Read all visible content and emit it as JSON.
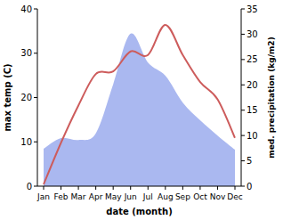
{
  "chart_data": {
    "type": "line",
    "xlabel": "date (month)",
    "ylabel": "max temp (C)",
    "y2label": "med. precipitation (kg/m2)",
    "categories": [
      "Jan",
      "Feb",
      "Mar",
      "Apr",
      "May",
      "Jun",
      "Jul",
      "Aug",
      "Sep",
      "Oct",
      "Nov",
      "Dec"
    ],
    "series": [
      {
        "type": "area",
        "axis": "y2",
        "color": "#aab8f0",
        "values": [
          7.4,
          9.5,
          9.1,
          10.4,
          20.1,
          30.1,
          24.4,
          21.8,
          16.5,
          13.0,
          10.0,
          7.2
        ]
      },
      {
        "type": "line",
        "color": "#cd5c5c",
        "values": [
          0.4,
          9.8,
          18.2,
          25.3,
          25.9,
          30.4,
          29.6,
          36.4,
          29.6,
          23.5,
          19.6,
          10.9
        ]
      }
    ],
    "ylim": [
      0,
      40
    ],
    "yticks": [
      0,
      10,
      20,
      30,
      40
    ],
    "y2lim": [
      0,
      35
    ],
    "y2ticks": [
      0,
      5,
      10,
      15,
      20,
      25,
      30,
      35
    ]
  }
}
